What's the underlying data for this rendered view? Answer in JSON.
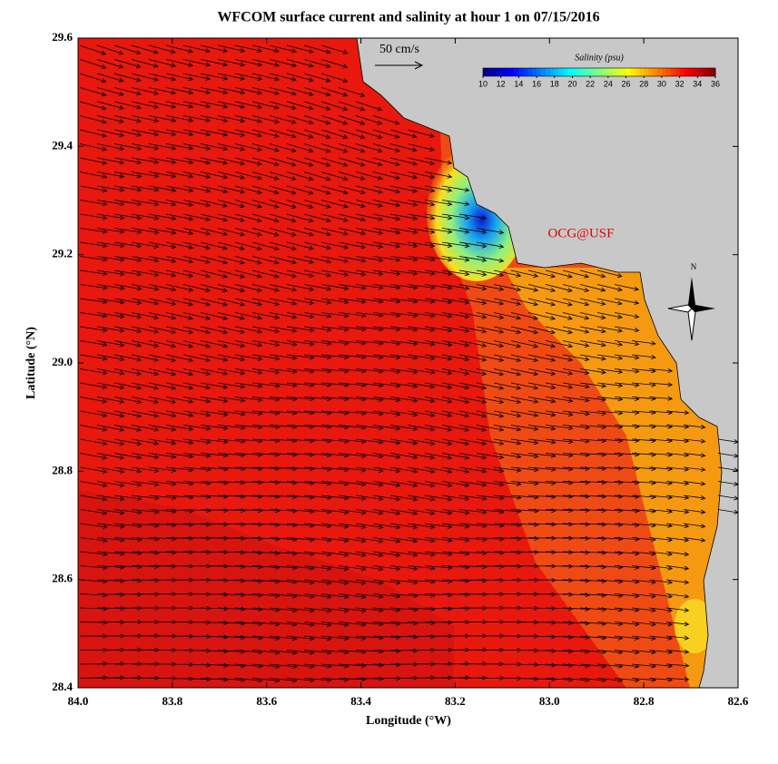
{
  "title": "WFCOM surface current and salinity at hour 1 on 07/15/2016",
  "x_axis": {
    "label": "Longitude (°W)",
    "lim": [
      84.0,
      82.6
    ],
    "ticks": [
      {
        "value": 84.0,
        "label": "84.0"
      },
      {
        "value": 83.8,
        "label": "83.8"
      },
      {
        "value": 83.6,
        "label": "83.6"
      },
      {
        "value": 83.4,
        "label": "83.4"
      },
      {
        "value": 83.2,
        "label": "83.2"
      },
      {
        "value": 83.0,
        "label": "83.0"
      },
      {
        "value": 82.8,
        "label": "82.8"
      },
      {
        "value": 82.6,
        "label": "82.6"
      }
    ]
  },
  "y_axis": {
    "label": "Latitude (°N)",
    "lim": [
      28.4,
      29.6
    ],
    "ticks": [
      {
        "value": 28.4,
        "label": "28.4"
      },
      {
        "value": 28.6,
        "label": "28.6"
      },
      {
        "value": 28.8,
        "label": "28.8"
      },
      {
        "value": 29.0,
        "label": "29.0"
      },
      {
        "value": 29.2,
        "label": "29.2"
      },
      {
        "value": 29.4,
        "label": "29.4"
      },
      {
        "value": 29.6,
        "label": "29.6"
      }
    ]
  },
  "colorbar": {
    "title": "Salinity (psu)",
    "lim": [
      10,
      36
    ],
    "ticks": [
      10,
      12,
      14,
      16,
      18,
      20,
      22,
      24,
      26,
      28,
      30,
      32,
      34,
      36
    ]
  },
  "vector_scale": {
    "label": "50 cm/s"
  },
  "credit": "OCG@USF",
  "compass": "N"
}
